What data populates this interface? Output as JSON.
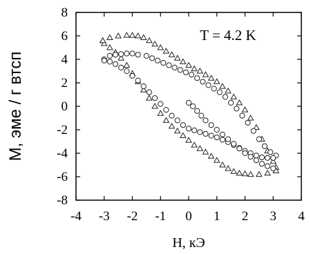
{
  "chart_data": {
    "type": "scatter",
    "xlabel": "H, кЭ",
    "ylabel": "M, эме / г втсп",
    "annotation": "T = 4.2 K",
    "xlim": [
      -4,
      4
    ],
    "ylim": [
      -8,
      8
    ],
    "xticks": [
      -4,
      -3,
      -2,
      -1,
      0,
      1,
      2,
      3,
      4
    ],
    "yticks": [
      8,
      6,
      4,
      2,
      0,
      -2,
      -4,
      -6,
      -8
    ],
    "grid": false,
    "series": [
      {
        "marker": "triangle",
        "x": [
          -3.05,
          -2.8,
          -2.5,
          -2.2,
          -2.0,
          -1.8,
          -1.6,
          -1.4,
          -1.2,
          -1.0,
          -0.8,
          -0.6,
          -0.4,
          -0.2,
          0.0,
          0.2,
          0.4,
          0.6,
          0.8,
          1.0,
          1.2,
          1.4,
          1.6,
          1.8,
          2.0,
          2.2,
          2.4,
          2.6,
          2.8,
          3.0,
          3.1,
          3.1,
          2.8,
          2.5,
          2.2,
          2.0,
          1.8,
          1.6,
          1.4,
          1.2,
          1.0,
          0.8,
          0.6,
          0.4,
          0.2,
          0.0,
          -0.2,
          -0.4,
          -0.6,
          -0.8,
          -1.0,
          -1.2,
          -1.4,
          -1.6,
          -1.8,
          -2.0,
          -2.2,
          -2.4,
          -2.6,
          -2.8,
          -3.0,
          -3.05
        ],
        "y": [
          5.6,
          5.85,
          6.0,
          6.05,
          6.05,
          6.0,
          5.85,
          5.6,
          5.3,
          5.0,
          4.7,
          4.4,
          4.1,
          3.8,
          3.5,
          3.2,
          3.0,
          2.7,
          2.4,
          2.1,
          1.7,
          1.3,
          0.8,
          0.3,
          -0.3,
          -1.0,
          -1.8,
          -2.8,
          -3.8,
          -4.7,
          -5.2,
          -5.5,
          -5.7,
          -5.8,
          -5.8,
          -5.75,
          -5.7,
          -5.55,
          -5.3,
          -5.0,
          -4.6,
          -4.25,
          -3.9,
          -3.6,
          -3.3,
          -2.9,
          -2.5,
          -2.1,
          -1.7,
          -1.2,
          -0.6,
          0.0,
          0.7,
          1.4,
          2.1,
          2.8,
          3.5,
          4.1,
          4.6,
          5.0,
          5.35,
          5.6
        ]
      },
      {
        "marker": "circle",
        "x": [
          -3.0,
          -2.8,
          -2.6,
          -2.4,
          -2.2,
          -2.0,
          -1.8,
          -1.5,
          -1.3,
          -1.1,
          -0.9,
          -0.7,
          -0.5,
          -0.3,
          -0.1,
          0.1,
          0.3,
          0.5,
          0.7,
          0.9,
          1.1,
          1.3,
          1.5,
          1.7,
          1.9,
          2.1,
          2.3,
          2.5,
          2.7,
          2.9,
          3.1,
          3.0,
          2.8,
          2.6,
          2.4,
          2.2,
          2.0,
          1.8,
          1.6,
          1.4,
          1.2,
          1.0,
          0.8,
          0.6,
          0.4,
          0.2,
          0.0,
          -0.2,
          -0.4,
          -0.6,
          -0.8,
          -1.0,
          -1.2,
          -1.4,
          -1.6,
          -1.8,
          -2.0,
          -2.2,
          -2.4,
          -2.6,
          -2.8,
          -3.0,
          0.0,
          0.15,
          0.3,
          0.45,
          0.6,
          0.8,
          1.0,
          1.2,
          1.4,
          1.6,
          1.8,
          2.0,
          2.2,
          2.4,
          2.6,
          2.8,
          3.0
        ],
        "y": [
          4.0,
          4.3,
          4.4,
          4.45,
          4.5,
          4.5,
          4.4,
          4.3,
          4.1,
          3.9,
          3.7,
          3.5,
          3.3,
          3.1,
          2.9,
          2.7,
          2.4,
          2.1,
          1.8,
          1.5,
          1.2,
          0.8,
          0.3,
          -0.2,
          -0.8,
          -1.4,
          -2.1,
          -2.8,
          -3.4,
          -3.9,
          -4.2,
          -4.4,
          -4.4,
          -4.35,
          -4.2,
          -4.0,
          -3.8,
          -3.55,
          -3.3,
          -3.05,
          -2.85,
          -2.65,
          -2.5,
          -2.35,
          -2.2,
          -2.05,
          -1.9,
          -1.6,
          -1.2,
          -0.8,
          -0.3,
          0.2,
          0.7,
          1.2,
          1.7,
          2.2,
          2.6,
          3.0,
          3.3,
          3.6,
          3.8,
          3.9,
          0.3,
          0.0,
          -0.4,
          -0.8,
          -1.2,
          -1.6,
          -2.0,
          -2.4,
          -2.8,
          -3.2,
          -3.6,
          -4.0,
          -4.3,
          -4.6,
          -4.9,
          -5.1,
          -5.3
        ]
      }
    ]
  }
}
